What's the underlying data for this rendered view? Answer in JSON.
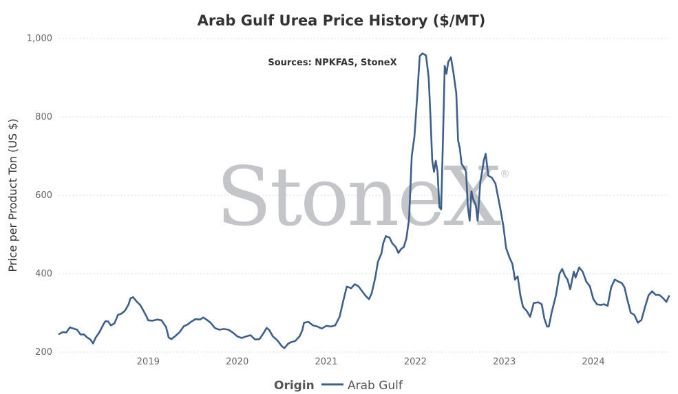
{
  "chart_data": {
    "type": "line",
    "title": "Arab Gulf Urea Price History ($/MT)",
    "annotation": "Sources: NPKFAS, StoneX",
    "watermark": "StoneX",
    "watermark_mark": "®",
    "ylabel": "Price per Product Ton (US $)",
    "xlabel": "",
    "ylim": [
      200,
      1000
    ],
    "yticks": [
      200,
      400,
      600,
      800,
      1000
    ],
    "ytick_labels": [
      "200",
      "400",
      "600",
      "800",
      "1,000"
    ],
    "xlim": [
      2018.0,
      2024.85
    ],
    "xticks": [
      2019,
      2020,
      2021,
      2022,
      2023,
      2024
    ],
    "xtick_labels": [
      "2019",
      "2020",
      "2021",
      "2022",
      "2023",
      "2024"
    ],
    "grid": "horizontal dotted",
    "legend": {
      "title": "Origin",
      "placement": "bottom-center"
    },
    "series": [
      {
        "name": "Arab Gulf",
        "color": "#3d5f8c",
        "points": [
          [
            2018.0,
            246
          ],
          [
            2018.04,
            251
          ],
          [
            2018.08,
            250
          ],
          [
            2018.12,
            263
          ],
          [
            2018.16,
            260
          ],
          [
            2018.2,
            257
          ],
          [
            2018.24,
            245
          ],
          [
            2018.28,
            245
          ],
          [
            2018.31,
            238
          ],
          [
            2018.35,
            232
          ],
          [
            2018.38,
            222
          ],
          [
            2018.41,
            237
          ],
          [
            2018.45,
            250
          ],
          [
            2018.5,
            272
          ],
          [
            2018.52,
            279
          ],
          [
            2018.55,
            278
          ],
          [
            2018.58,
            268
          ],
          [
            2018.62,
            273
          ],
          [
            2018.66,
            295
          ],
          [
            2018.7,
            298
          ],
          [
            2018.74,
            306
          ],
          [
            2018.78,
            322
          ],
          [
            2018.8,
            337
          ],
          [
            2018.83,
            340
          ],
          [
            2018.87,
            329
          ],
          [
            2018.91,
            320
          ],
          [
            2018.94,
            308
          ],
          [
            2018.98,
            291
          ],
          [
            2019.0,
            281
          ],
          [
            2019.05,
            280
          ],
          [
            2019.1,
            283
          ],
          [
            2019.15,
            281
          ],
          [
            2019.2,
            264
          ],
          [
            2019.23,
            237
          ],
          [
            2019.26,
            233
          ],
          [
            2019.3,
            240
          ],
          [
            2019.35,
            250
          ],
          [
            2019.4,
            266
          ],
          [
            2019.44,
            270
          ],
          [
            2019.48,
            277
          ],
          [
            2019.53,
            284
          ],
          [
            2019.58,
            283
          ],
          [
            2019.62,
            288
          ],
          [
            2019.66,
            282
          ],
          [
            2019.7,
            275
          ],
          [
            2019.75,
            261
          ],
          [
            2019.8,
            257
          ],
          [
            2019.85,
            259
          ],
          [
            2019.9,
            257
          ],
          [
            2019.95,
            250
          ],
          [
            2020.0,
            240
          ],
          [
            2020.05,
            236
          ],
          [
            2020.1,
            240
          ],
          [
            2020.15,
            243
          ],
          [
            2020.2,
            232
          ],
          [
            2020.25,
            233
          ],
          [
            2020.3,
            250
          ],
          [
            2020.33,
            262
          ],
          [
            2020.36,
            256
          ],
          [
            2020.4,
            240
          ],
          [
            2020.45,
            230
          ],
          [
            2020.5,
            215
          ],
          [
            2020.53,
            210
          ],
          [
            2020.57,
            221
          ],
          [
            2020.6,
            225
          ],
          [
            2020.65,
            228
          ],
          [
            2020.7,
            240
          ],
          [
            2020.73,
            255
          ],
          [
            2020.75,
            275
          ],
          [
            2020.8,
            277
          ],
          [
            2020.85,
            268
          ],
          [
            2020.9,
            265
          ],
          [
            2020.95,
            260
          ],
          [
            2021.0,
            267
          ],
          [
            2021.05,
            265
          ],
          [
            2021.1,
            268
          ],
          [
            2021.15,
            290
          ],
          [
            2021.19,
            330
          ],
          [
            2021.23,
            367
          ],
          [
            2021.28,
            363
          ],
          [
            2021.32,
            373
          ],
          [
            2021.36,
            368
          ],
          [
            2021.4,
            356
          ],
          [
            2021.44,
            344
          ],
          [
            2021.48,
            335
          ],
          [
            2021.51,
            350
          ],
          [
            2021.55,
            390
          ],
          [
            2021.58,
            430
          ],
          [
            2021.62,
            452
          ],
          [
            2021.64,
            478
          ],
          [
            2021.67,
            496
          ],
          [
            2021.71,
            492
          ],
          [
            2021.74,
            478
          ],
          [
            2021.78,
            468
          ],
          [
            2021.81,
            453
          ],
          [
            2021.84,
            463
          ],
          [
            2021.87,
            468
          ],
          [
            2021.9,
            490
          ],
          [
            2021.93,
            540
          ],
          [
            2021.96,
            700
          ],
          [
            2021.99,
            750
          ],
          [
            2022.02,
            850
          ],
          [
            2022.05,
            955
          ],
          [
            2022.08,
            962
          ],
          [
            2022.12,
            957
          ],
          [
            2022.15,
            900
          ],
          [
            2022.17,
            800
          ],
          [
            2022.19,
            690
          ],
          [
            2022.21,
            660
          ],
          [
            2022.23,
            688
          ],
          [
            2022.25,
            660
          ],
          [
            2022.27,
            570
          ],
          [
            2022.29,
            564
          ],
          [
            2022.31,
            740
          ],
          [
            2022.33,
            930
          ],
          [
            2022.35,
            910
          ],
          [
            2022.37,
            940
          ],
          [
            2022.4,
            952
          ],
          [
            2022.43,
            910
          ],
          [
            2022.46,
            860
          ],
          [
            2022.48,
            740
          ],
          [
            2022.5,
            720
          ],
          [
            2022.52,
            680
          ],
          [
            2022.55,
            670
          ],
          [
            2022.57,
            660
          ],
          [
            2022.59,
            570
          ],
          [
            2022.61,
            535
          ],
          [
            2022.63,
            610
          ],
          [
            2022.65,
            590
          ],
          [
            2022.68,
            575
          ],
          [
            2022.7,
            535
          ],
          [
            2022.73,
            635
          ],
          [
            2022.75,
            660
          ],
          [
            2022.77,
            690
          ],
          [
            2022.79,
            706
          ],
          [
            2022.82,
            650
          ],
          [
            2022.86,
            645
          ],
          [
            2022.9,
            630
          ],
          [
            2022.93,
            595
          ],
          [
            2022.96,
            560
          ],
          [
            2022.99,
            520
          ],
          [
            2023.02,
            465
          ],
          [
            2023.06,
            440
          ],
          [
            2023.09,
            425
          ],
          [
            2023.12,
            385
          ],
          [
            2023.15,
            393
          ],
          [
            2023.18,
            345
          ],
          [
            2023.21,
            315
          ],
          [
            2023.25,
            305
          ],
          [
            2023.29,
            290
          ],
          [
            2023.33,
            325
          ],
          [
            2023.38,
            327
          ],
          [
            2023.42,
            322
          ],
          [
            2023.45,
            285
          ],
          [
            2023.48,
            265
          ],
          [
            2023.5,
            265
          ],
          [
            2023.53,
            300
          ],
          [
            2023.58,
            345
          ],
          [
            2023.62,
            400
          ],
          [
            2023.65,
            412
          ],
          [
            2023.68,
            395
          ],
          [
            2023.71,
            385
          ],
          [
            2023.74,
            360
          ],
          [
            2023.78,
            405
          ],
          [
            2023.8,
            390
          ],
          [
            2023.84,
            416
          ],
          [
            2023.88,
            405
          ],
          [
            2023.92,
            380
          ],
          [
            2023.96,
            368
          ],
          [
            2024.0,
            335
          ],
          [
            2024.04,
            322
          ],
          [
            2024.08,
            320
          ],
          [
            2024.12,
            322
          ],
          [
            2024.16,
            318
          ],
          [
            2024.2,
            365
          ],
          [
            2024.24,
            385
          ],
          [
            2024.28,
            380
          ],
          [
            2024.32,
            376
          ],
          [
            2024.35,
            365
          ],
          [
            2024.38,
            335
          ],
          [
            2024.42,
            300
          ],
          [
            2024.46,
            295
          ],
          [
            2024.5,
            275
          ],
          [
            2024.54,
            282
          ],
          [
            2024.58,
            315
          ],
          [
            2024.62,
            345
          ],
          [
            2024.66,
            355
          ],
          [
            2024.7,
            346
          ],
          [
            2024.74,
            346
          ],
          [
            2024.78,
            338
          ],
          [
            2024.82,
            328
          ],
          [
            2024.85,
            343
          ]
        ]
      }
    ]
  }
}
